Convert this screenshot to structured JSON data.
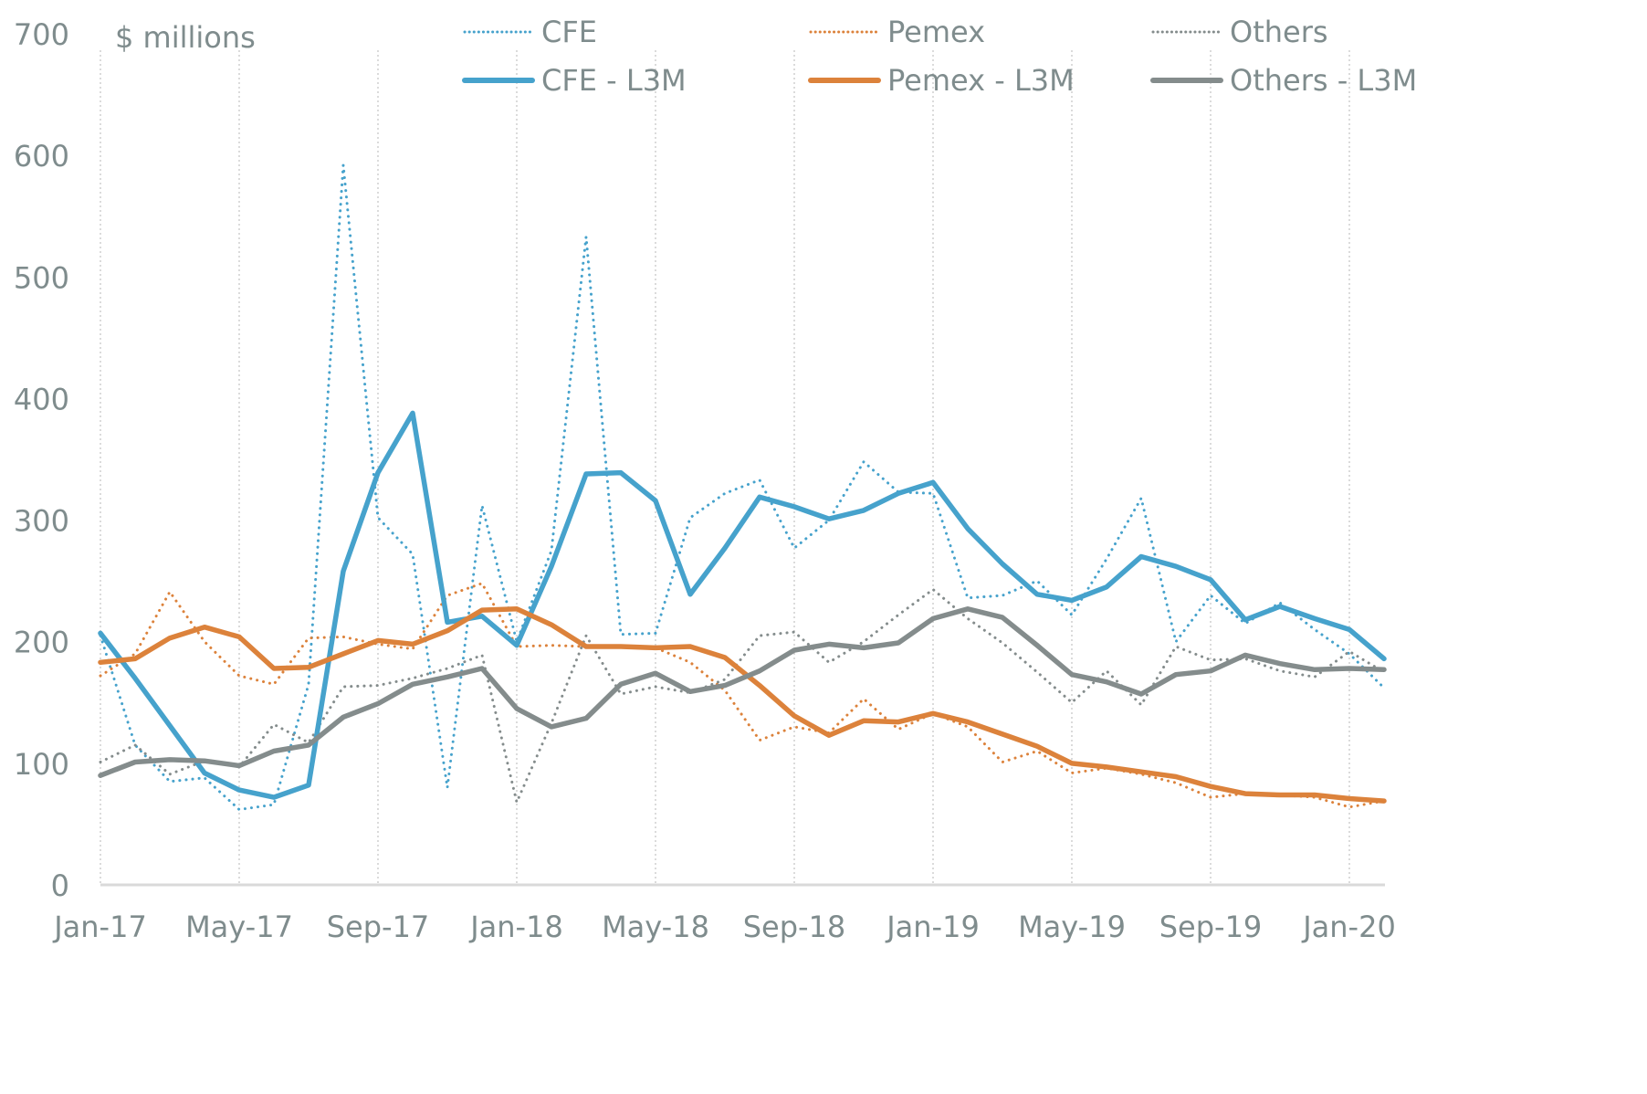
{
  "chart_data": {
    "type": "line",
    "title": "",
    "unit_label": "$ millions",
    "xlabel": "",
    "ylabel": "$ millions",
    "ylim": [
      0,
      700
    ],
    "yticks": [
      0,
      100,
      200,
      300,
      400,
      500,
      600,
      700
    ],
    "ytick_labels": [
      "0",
      "100",
      "200",
      "300",
      "400",
      "500",
      "600",
      "700"
    ],
    "xtick_labels": [
      "Jan-17",
      "May-17",
      "Sep-17",
      "Jan-18",
      "May-18",
      "Sep-18",
      "Jan-19",
      "May-19",
      "Sep-19",
      "Jan-20"
    ],
    "xtick_every": 4,
    "grid": "vertical-dotted",
    "legend_position": "top",
    "months": [
      "Jan-17",
      "Feb-17",
      "Mar-17",
      "Apr-17",
      "May-17",
      "Jun-17",
      "Jul-17",
      "Aug-17",
      "Sep-17",
      "Oct-17",
      "Nov-17",
      "Dec-17",
      "Jan-18",
      "Feb-18",
      "Mar-18",
      "Apr-18",
      "May-18",
      "Jun-18",
      "Jul-18",
      "Aug-18",
      "Sep-18",
      "Oct-18",
      "Nov-18",
      "Dec-18",
      "Jan-19",
      "Feb-19",
      "Mar-19",
      "Apr-19",
      "May-19",
      "Jun-19",
      "Jul-19",
      "Aug-19",
      "Sep-19",
      "Oct-19",
      "Nov-19",
      "Dec-19",
      "Jan-20",
      "Feb-20"
    ],
    "series": [
      {
        "name": "CFE",
        "style": "dotted",
        "color": "#46a2cc",
        "values": [
          205,
          115,
          85,
          88,
          62,
          66,
          165,
          592,
          302,
          272,
          80,
          312,
          200,
          275,
          533,
          206,
          207,
          302,
          322,
          333,
          277,
          300,
          348,
          323,
          322,
          236,
          238,
          250,
          222,
          268,
          318,
          200,
          238,
          215,
          232,
          210,
          190,
          162
        ]
      },
      {
        "name": "Pemex",
        "style": "dotted",
        "color": "#dc823b",
        "values": [
          172,
          190,
          241,
          200,
          172,
          165,
          203,
          204,
          198,
          194,
          238,
          248,
          196,
          197,
          196,
          196,
          195,
          183,
          160,
          119,
          130,
          125,
          153,
          128,
          141,
          130,
          101,
          110,
          92,
          96,
          91,
          84,
          72,
          75,
          74,
          72,
          64,
          69
        ]
      },
      {
        "name": "Others",
        "style": "dotted",
        "color": "#848c8c",
        "values": [
          101,
          115,
          91,
          102,
          97,
          132,
          117,
          163,
          164,
          170,
          178,
          189,
          68,
          133,
          205,
          157,
          163,
          158,
          169,
          205,
          208,
          183,
          200,
          222,
          243,
          219,
          199,
          175,
          150,
          176,
          148,
          196,
          185,
          186,
          176,
          171,
          192,
          175
        ]
      },
      {
        "name": "CFE - L3M",
        "style": "solid",
        "color": "#46a2cc",
        "values": [
          207,
          170,
          131,
          92,
          78,
          72,
          82,
          258,
          339,
          388,
          216,
          221,
          197,
          262,
          338,
          339,
          316,
          239,
          277,
          319,
          311,
          301,
          308,
          322,
          331,
          293,
          264,
          239,
          234,
          245,
          270,
          262,
          251,
          218,
          229,
          219,
          210,
          186
        ]
      },
      {
        "name": "Pemex - L3M",
        "style": "solid",
        "color": "#dc823b",
        "values": [
          183,
          186,
          203,
          212,
          204,
          178,
          179,
          190,
          201,
          198,
          209,
          226,
          227,
          214,
          196,
          196,
          195,
          196,
          187,
          164,
          139,
          123,
          135,
          134,
          141,
          134,
          124,
          114,
          100,
          97,
          93,
          89,
          81,
          75,
          74,
          74,
          71,
          69
        ]
      },
      {
        "name": "Others - L3M",
        "style": "solid",
        "color": "#848c8c",
        "values": [
          90,
          101,
          103,
          102,
          98,
          110,
          115,
          138,
          149,
          165,
          171,
          178,
          145,
          130,
          137,
          165,
          174,
          159,
          164,
          176,
          193,
          198,
          195,
          199,
          219,
          227,
          220,
          197,
          173,
          167,
          157,
          173,
          176,
          189,
          182,
          177,
          178,
          177
        ]
      }
    ]
  }
}
